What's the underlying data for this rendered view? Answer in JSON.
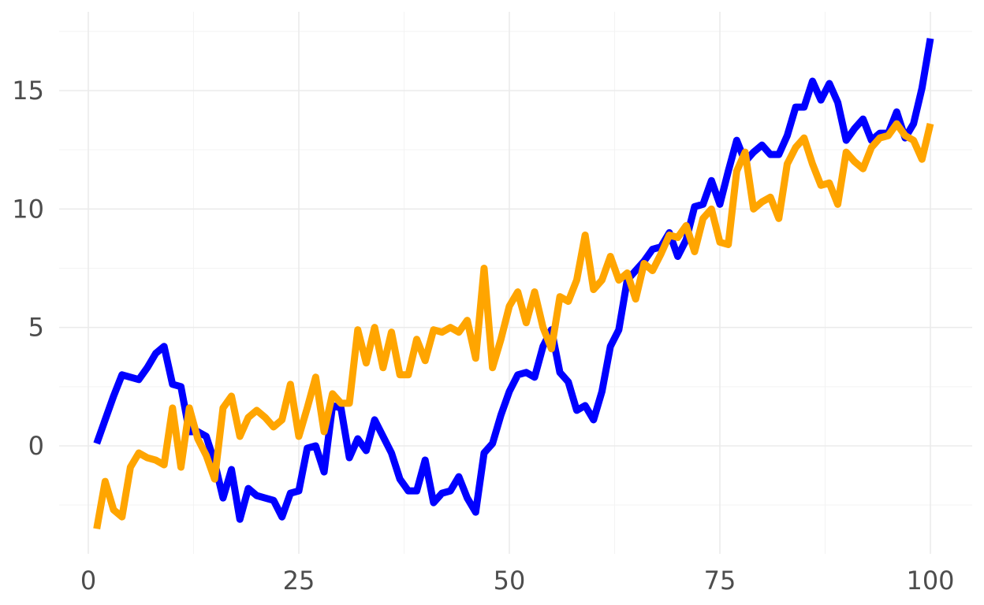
{
  "chart_data": {
    "type": "line",
    "title": "",
    "xlabel": "",
    "ylabel": "",
    "xlim": [
      1,
      100
    ],
    "ylim": [
      -3.5,
      17.2
    ],
    "x_ticks": [
      0,
      25,
      50,
      75,
      100
    ],
    "y_ticks": [
      0,
      5,
      10,
      15
    ],
    "grid": true,
    "legend": "none",
    "series": [
      {
        "color": "#0000ff",
        "x": [
          1,
          2,
          3,
          4,
          5,
          6,
          7,
          8,
          9,
          10,
          11,
          12,
          13,
          14,
          15,
          16,
          17,
          18,
          19,
          20,
          21,
          22,
          23,
          24,
          25,
          26,
          27,
          28,
          29,
          30,
          31,
          32,
          33,
          34,
          35,
          36,
          37,
          38,
          39,
          40,
          41,
          42,
          43,
          44,
          45,
          46,
          47,
          48,
          49,
          50,
          51,
          52,
          53,
          54,
          55,
          56,
          57,
          58,
          59,
          60,
          61,
          62,
          63,
          64,
          65,
          66,
          67,
          68,
          69,
          70,
          71,
          72,
          73,
          74,
          75,
          76,
          77,
          78,
          79,
          80,
          81,
          82,
          83,
          84,
          85,
          86,
          87,
          88,
          89,
          90,
          91,
          92,
          93,
          94,
          95,
          96,
          97,
          98,
          99,
          100
        ],
        "values": [
          0.1,
          1.1,
          2.1,
          3.0,
          2.9,
          2.8,
          3.3,
          3.9,
          4.2,
          2.6,
          2.5,
          0.6,
          0.6,
          0.4,
          -0.7,
          -2.2,
          -1.0,
          -3.1,
          -1.8,
          -2.1,
          -2.2,
          -2.3,
          -3.0,
          -2.0,
          -1.9,
          -0.1,
          0.0,
          -1.1,
          1.7,
          1.6,
          -0.5,
          0.3,
          -0.2,
          1.1,
          0.4,
          -0.3,
          -1.4,
          -1.9,
          -1.9,
          -0.6,
          -2.4,
          -2.0,
          -1.9,
          -1.3,
          -2.2,
          -2.8,
          -0.3,
          0.1,
          1.3,
          2.3,
          3.0,
          3.1,
          2.9,
          4.2,
          4.9,
          3.1,
          2.7,
          1.5,
          1.7,
          1.1,
          2.3,
          4.2,
          4.9,
          7.0,
          7.4,
          7.8,
          8.3,
          8.4,
          9.0,
          8.0,
          8.7,
          10.1,
          10.2,
          11.2,
          10.2,
          11.6,
          12.9,
          12.0,
          12.4,
          12.7,
          12.3,
          12.3,
          13.1,
          14.3,
          14.3,
          15.4,
          14.6,
          15.3,
          14.5,
          12.9,
          13.4,
          13.8,
          12.9,
          13.2,
          13.2,
          14.1,
          13.0,
          13.6,
          15.1,
          17.2
        ]
      },
      {
        "color": "#ffa500",
        "x": [
          1,
          2,
          3,
          4,
          5,
          6,
          7,
          8,
          9,
          10,
          11,
          12,
          13,
          14,
          15,
          16,
          17,
          18,
          19,
          20,
          21,
          22,
          23,
          24,
          25,
          26,
          27,
          28,
          29,
          30,
          31,
          32,
          33,
          34,
          35,
          36,
          37,
          38,
          39,
          40,
          41,
          42,
          43,
          44,
          45,
          46,
          47,
          48,
          49,
          50,
          51,
          52,
          53,
          54,
          55,
          56,
          57,
          58,
          59,
          60,
          61,
          62,
          63,
          64,
          65,
          66,
          67,
          68,
          69,
          70,
          71,
          72,
          73,
          74,
          75,
          76,
          77,
          78,
          79,
          80,
          81,
          82,
          83,
          84,
          85,
          86,
          87,
          88,
          89,
          90,
          91,
          92,
          93,
          94,
          95,
          96,
          97,
          98,
          99,
          100
        ],
        "values": [
          -3.5,
          -1.5,
          -2.7,
          -3.0,
          -0.9,
          -0.3,
          -0.5,
          -0.6,
          -0.8,
          1.6,
          -0.9,
          1.6,
          0.3,
          -0.4,
          -1.4,
          1.6,
          2.1,
          0.4,
          1.2,
          1.5,
          1.2,
          0.8,
          1.1,
          2.6,
          0.4,
          1.6,
          2.9,
          0.6,
          2.2,
          1.8,
          1.8,
          4.9,
          3.5,
          5.0,
          3.3,
          4.8,
          3.0,
          3.0,
          4.5,
          3.6,
          4.9,
          4.8,
          5.0,
          4.8,
          5.3,
          3.7,
          7.5,
          3.3,
          4.5,
          5.9,
          6.5,
          5.2,
          6.5,
          5.0,
          4.1,
          6.3,
          6.1,
          7.0,
          8.9,
          6.6,
          7.0,
          8.0,
          7.0,
          7.3,
          6.2,
          7.7,
          7.4,
          8.1,
          8.9,
          8.8,
          9.3,
          8.2,
          9.6,
          10.0,
          8.6,
          8.5,
          11.6,
          12.4,
          10.0,
          10.3,
          10.5,
          9.6,
          11.9,
          12.6,
          13.0,
          11.9,
          11.0,
          11.1,
          10.2,
          12.4,
          12.0,
          11.7,
          12.6,
          13.0,
          13.1,
          13.6,
          13.1,
          12.9,
          12.1,
          13.6
        ]
      }
    ]
  }
}
